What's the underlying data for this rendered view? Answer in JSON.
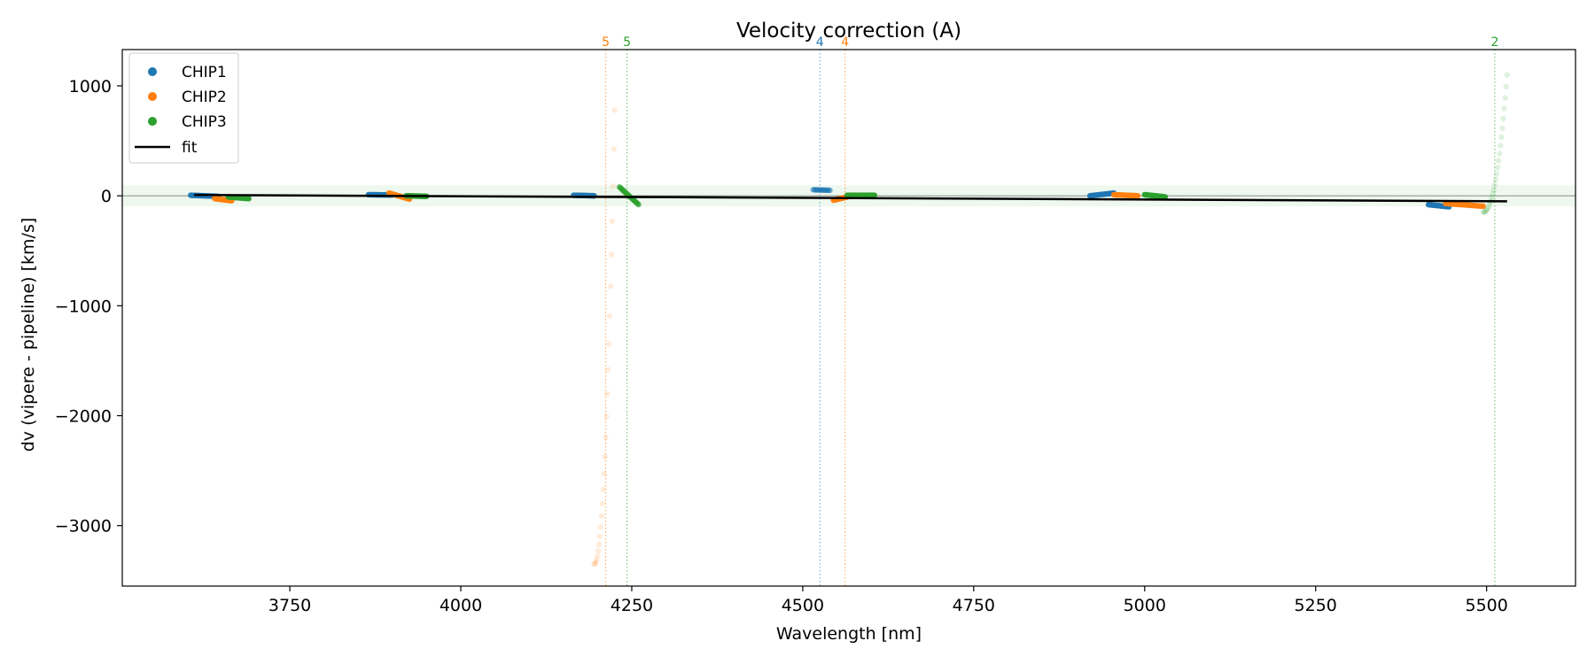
{
  "chart_data": {
    "type": "scatter",
    "title": "Velocity correction (A)",
    "xlabel": "Wavelength [nm]",
    "ylabel": "dv (vipere - pipeline) [km/s]",
    "xlim": [
      3505,
      5630
    ],
    "ylim": [
      -3550,
      1330
    ],
    "xticks": [
      3750,
      4000,
      4250,
      4500,
      4750,
      5000,
      5250,
      5500
    ],
    "yticks": [
      -3000,
      -2000,
      -1000,
      0,
      1000
    ],
    "xtick_labels": [
      "3750",
      "4000",
      "4250",
      "4500",
      "4750",
      "5000",
      "5250",
      "5500"
    ],
    "ytick_labels": [
      "−3000",
      "−2000",
      "−1000",
      "0",
      "1000"
    ],
    "grid": false,
    "legend_position": "top-left",
    "band": {
      "ymin": -95,
      "ymax": 95,
      "color": "#2ca02c"
    },
    "zero_line": 0,
    "series": [
      {
        "name": "CHIP1",
        "color": "#1f77b4",
        "segments": [
          {
            "x0": 3605,
            "x1": 3645,
            "y0": 5,
            "y1": -5,
            "alpha": 0.9
          },
          {
            "x0": 3865,
            "x1": 3900,
            "y0": 10,
            "y1": 8,
            "alpha": 0.9
          },
          {
            "x0": 4165,
            "x1": 4195,
            "y0": 5,
            "y1": 0,
            "alpha": 0.9
          },
          {
            "x0": 4515,
            "x1": 4540,
            "y0": 55,
            "y1": 50,
            "alpha": 0.35
          },
          {
            "x0": 4920,
            "x1": 4955,
            "y0": 0,
            "y1": 25,
            "alpha": 0.9
          },
          {
            "x0": 5415,
            "x1": 5445,
            "y0": -80,
            "y1": -100,
            "alpha": 0.9
          }
        ]
      },
      {
        "name": "CHIP2",
        "color": "#ff7f0e",
        "segments": [
          {
            "x0": 3640,
            "x1": 3665,
            "y0": -25,
            "y1": -45,
            "alpha": 0.9
          },
          {
            "x0": 3895,
            "x1": 3925,
            "y0": 25,
            "y1": -30,
            "alpha": 0.9
          },
          {
            "x0": 4195,
            "x1": 4225,
            "y0": -3350,
            "y1": 780,
            "alpha": 0.15
          },
          {
            "x0": 4545,
            "x1": 4565,
            "y0": -40,
            "y1": -10,
            "alpha": 0.9
          },
          {
            "x0": 4955,
            "x1": 4990,
            "y0": 10,
            "y1": 0,
            "alpha": 0.9
          },
          {
            "x0": 5440,
            "x1": 5495,
            "y0": -70,
            "y1": -95,
            "alpha": 0.9
          }
        ]
      },
      {
        "name": "CHIP3",
        "color": "#2ca02c",
        "segments": [
          {
            "x0": 3660,
            "x1": 3690,
            "y0": -10,
            "y1": -25,
            "alpha": 0.9
          },
          {
            "x0": 3920,
            "x1": 3950,
            "y0": 0,
            "y1": -5,
            "alpha": 0.9
          },
          {
            "x0": 4232,
            "x1": 4260,
            "y0": 80,
            "y1": -80,
            "alpha": 0.6
          },
          {
            "x0": 4565,
            "x1": 4605,
            "y0": 5,
            "y1": 5,
            "alpha": 0.9
          },
          {
            "x0": 5000,
            "x1": 5030,
            "y0": 10,
            "y1": -10,
            "alpha": 0.9
          },
          {
            "x0": 5495,
            "x1": 5530,
            "y0": -150,
            "y1": 1100,
            "alpha": 0.15
          }
        ]
      }
    ],
    "fit": {
      "name": "fit",
      "color": "#000000",
      "x": [
        3610,
        5530
      ],
      "y": [
        8,
        -50
      ]
    },
    "vlines": [
      {
        "x": 4212,
        "label": "5",
        "color": "#ff7f0e"
      },
      {
        "x": 4243,
        "label": "5",
        "color": "#2ca02c"
      },
      {
        "x": 4525,
        "label": "4",
        "color": "#1f77b4"
      },
      {
        "x": 4562,
        "label": "4",
        "color": "#ff7f0e"
      },
      {
        "x": 5512,
        "label": "2",
        "color": "#2ca02c"
      }
    ]
  }
}
